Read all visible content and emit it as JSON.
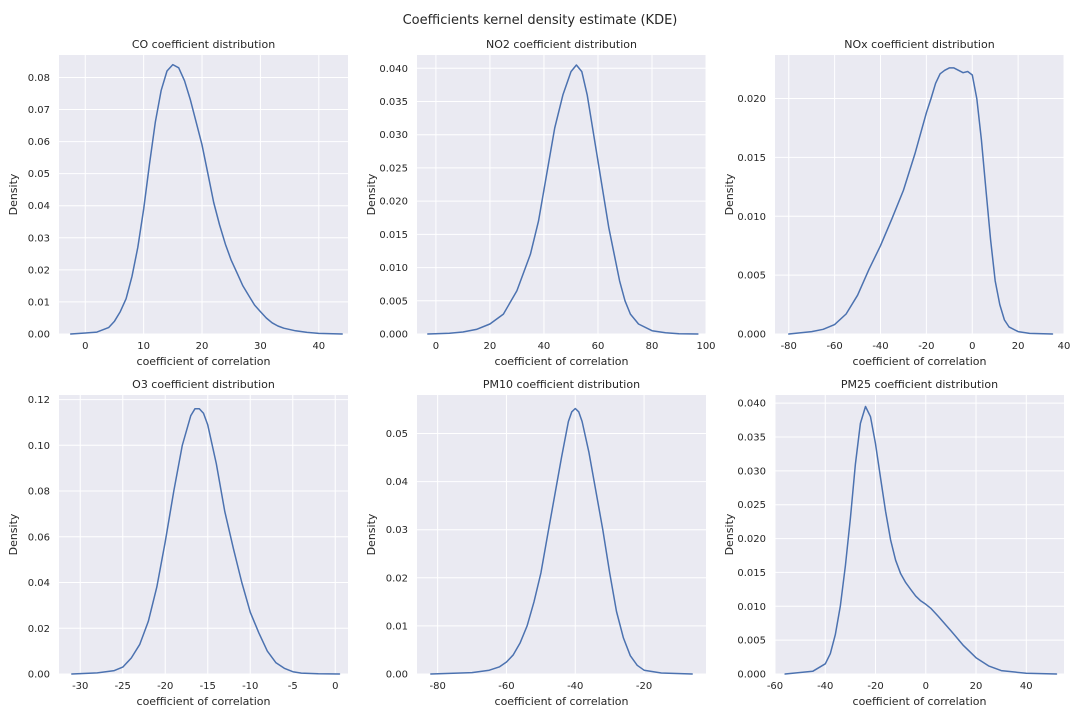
{
  "figure": {
    "title": "Coefficients kernel density estimate (KDE)"
  },
  "colors": {
    "line": "#4c72b0",
    "plot_background": "#eaeaf2",
    "grid": "#ffffff"
  },
  "chart_data": [
    {
      "type": "line",
      "title": "CO coefficient distribution",
      "xlabel": "coefficient of correlation",
      "ylabel": "Density",
      "xlim": [
        -4.5,
        45
      ],
      "ylim": [
        0,
        0.087
      ],
      "xticks": [
        0,
        10,
        20,
        30,
        40
      ],
      "yticks": [
        0.0,
        0.01,
        0.02,
        0.03,
        0.04,
        0.05,
        0.06,
        0.07,
        0.08
      ],
      "ytick_labels": [
        "0.00",
        "0.01",
        "0.02",
        "0.03",
        "0.04",
        "0.05",
        "0.06",
        "0.07",
        "0.08"
      ],
      "grid": true,
      "series": [
        {
          "x": [
            -2.5,
            0,
            2,
            4,
            5,
            6,
            7,
            8,
            9,
            10,
            11,
            12,
            13,
            14,
            15,
            16,
            17,
            18,
            19,
            20,
            21,
            22,
            23,
            24,
            25,
            26,
            27,
            28,
            29,
            30,
            31,
            32,
            33,
            34,
            36,
            38,
            40,
            44
          ],
          "y": [
            0.0,
            0.0003,
            0.0006,
            0.002,
            0.004,
            0.007,
            0.011,
            0.018,
            0.027,
            0.039,
            0.053,
            0.066,
            0.076,
            0.082,
            0.084,
            0.083,
            0.079,
            0.073,
            0.066,
            0.059,
            0.05,
            0.041,
            0.034,
            0.028,
            0.023,
            0.019,
            0.015,
            0.012,
            0.009,
            0.007,
            0.005,
            0.0035,
            0.0025,
            0.0018,
            0.001,
            0.0005,
            0.0002,
            0.0
          ]
        }
      ]
    },
    {
      "type": "line",
      "title": "NO2 coefficient distribution",
      "xlabel": "coefficient of correlation",
      "ylabel": "Density",
      "xlim": [
        -7,
        100
      ],
      "ylim": [
        0,
        0.042
      ],
      "xticks": [
        0,
        20,
        40,
        60,
        80,
        100
      ],
      "yticks": [
        0.0,
        0.005,
        0.01,
        0.015,
        0.02,
        0.025,
        0.03,
        0.035,
        0.04
      ],
      "ytick_labels": [
        "0.000",
        "0.005",
        "0.010",
        "0.015",
        "0.020",
        "0.025",
        "0.030",
        "0.035",
        "0.040"
      ],
      "grid": true,
      "series": [
        {
          "x": [
            -3,
            5,
            10,
            15,
            20,
            25,
            30,
            35,
            38,
            41,
            44,
            47,
            50,
            52,
            54,
            56,
            58,
            60,
            62,
            64,
            66,
            68,
            70,
            72,
            75,
            80,
            85,
            90,
            97
          ],
          "y": [
            0.0,
            0.0001,
            0.0003,
            0.0007,
            0.0015,
            0.003,
            0.0065,
            0.012,
            0.017,
            0.024,
            0.031,
            0.036,
            0.0395,
            0.0405,
            0.0395,
            0.036,
            0.031,
            0.026,
            0.021,
            0.016,
            0.012,
            0.008,
            0.005,
            0.003,
            0.0015,
            0.0005,
            0.0002,
            5e-05,
            0.0
          ]
        }
      ]
    },
    {
      "type": "line",
      "title": "NOx coefficient distribution",
      "xlabel": "coefficient of correlation",
      "ylabel": "Density",
      "xlim": [
        -86,
        40
      ],
      "ylim": [
        0,
        0.0237
      ],
      "xticks": [
        -80,
        -60,
        -40,
        -20,
        0,
        20,
        40
      ],
      "yticks": [
        0.0,
        0.005,
        0.01,
        0.015,
        0.02
      ],
      "ytick_labels": [
        "0.000",
        "0.005",
        "0.010",
        "0.015",
        "0.020"
      ],
      "grid": true,
      "series": [
        {
          "x": [
            -80,
            -70,
            -65,
            -60,
            -55,
            -50,
            -45,
            -40,
            -35,
            -30,
            -25,
            -20,
            -18,
            -16,
            -14,
            -12,
            -10,
            -8,
            -6,
            -4,
            -2,
            0,
            2,
            4,
            6,
            8,
            10,
            12,
            14,
            16,
            20,
            25,
            35
          ],
          "y": [
            0.0,
            0.0002,
            0.0004,
            0.0008,
            0.0017,
            0.0033,
            0.0055,
            0.0075,
            0.0098,
            0.0122,
            0.0153,
            0.0188,
            0.02,
            0.0213,
            0.0221,
            0.0224,
            0.0226,
            0.0226,
            0.0224,
            0.0222,
            0.0223,
            0.022,
            0.02,
            0.0165,
            0.0122,
            0.008,
            0.0045,
            0.0025,
            0.0012,
            0.0006,
            0.0002,
            5e-05,
            0.0
          ]
        }
      ]
    },
    {
      "type": "line",
      "title": "O3 coefficient distribution",
      "xlabel": "coefficient of correlation",
      "ylabel": "Density",
      "xlim": [
        -32.5,
        1.5
      ],
      "ylim": [
        0,
        0.122
      ],
      "xticks": [
        -30,
        -25,
        -20,
        -15,
        -10,
        -5,
        0
      ],
      "yticks": [
        0.0,
        0.02,
        0.04,
        0.06,
        0.08,
        0.1,
        0.12
      ],
      "ytick_labels": [
        "0.00",
        "0.02",
        "0.04",
        "0.06",
        "0.08",
        "0.10",
        "0.12"
      ],
      "grid": true,
      "series": [
        {
          "x": [
            -31,
            -28,
            -26,
            -25,
            -24,
            -23,
            -22,
            -21,
            -20,
            -19,
            -18,
            -17,
            -16.5,
            -16,
            -15.5,
            -15,
            -14,
            -13,
            -12,
            -11,
            -10,
            -9,
            -8,
            -7,
            -6,
            -5,
            -4,
            -2,
            0.5
          ],
          "y": [
            0.0,
            0.0005,
            0.0015,
            0.003,
            0.007,
            0.013,
            0.023,
            0.038,
            0.058,
            0.08,
            0.1,
            0.113,
            0.116,
            0.116,
            0.114,
            0.109,
            0.092,
            0.071,
            0.055,
            0.04,
            0.027,
            0.018,
            0.01,
            0.005,
            0.0025,
            0.001,
            0.0004,
            0.0001,
            0.0
          ]
        }
      ]
    },
    {
      "type": "line",
      "title": "PM10 coefficient distribution",
      "xlabel": "coefficient of correlation",
      "ylabel": "Density",
      "xlim": [
        -86,
        -2
      ],
      "ylim": [
        0,
        0.058
      ],
      "xticks": [
        -80,
        -60,
        -40,
        -20
      ],
      "yticks": [
        0.0,
        0.01,
        0.02,
        0.03,
        0.04,
        0.05
      ],
      "ytick_labels": [
        "0.00",
        "0.01",
        "0.02",
        "0.03",
        "0.04",
        "0.05"
      ],
      "grid": true,
      "series": [
        {
          "x": [
            -82,
            -70,
            -65,
            -62,
            -60,
            -58,
            -56,
            -54,
            -52,
            -50,
            -48,
            -46,
            -44,
            -42,
            -41,
            -40,
            -39,
            -38,
            -36,
            -34,
            -32,
            -30,
            -28,
            -26,
            -24,
            -22,
            -20,
            -15,
            -6
          ],
          "y": [
            0.0,
            0.0003,
            0.0008,
            0.0015,
            0.0025,
            0.004,
            0.0065,
            0.01,
            0.015,
            0.021,
            0.029,
            0.037,
            0.045,
            0.0525,
            0.0545,
            0.0552,
            0.0545,
            0.0525,
            0.046,
            0.038,
            0.03,
            0.021,
            0.013,
            0.0075,
            0.0038,
            0.0018,
            0.0008,
            0.0002,
            0.0
          ]
        }
      ]
    },
    {
      "type": "line",
      "title": "PM25 coefficient distribution",
      "xlabel": "coefficient of correlation",
      "ylabel": "Density",
      "xlim": [
        -60,
        55
      ],
      "ylim": [
        0,
        0.0412
      ],
      "xticks": [
        -60,
        -40,
        -20,
        0,
        20,
        40
      ],
      "yticks": [
        0.0,
        0.005,
        0.01,
        0.015,
        0.02,
        0.025,
        0.03,
        0.035,
        0.04
      ],
      "ytick_labels": [
        "0.000",
        "0.005",
        "0.010",
        "0.015",
        "0.020",
        "0.025",
        "0.030",
        "0.035",
        "0.040"
      ],
      "grid": true,
      "series": [
        {
          "x": [
            -56,
            -45,
            -40,
            -38,
            -36,
            -34,
            -32,
            -30,
            -28,
            -26,
            -24,
            -22,
            -20,
            -18,
            -16,
            -14,
            -12,
            -10,
            -8,
            -6,
            -4,
            -2,
            0,
            2,
            5,
            10,
            15,
            20,
            25,
            30,
            40,
            52
          ],
          "y": [
            0.0,
            0.0004,
            0.0015,
            0.003,
            0.0058,
            0.01,
            0.016,
            0.023,
            0.031,
            0.037,
            0.0395,
            0.038,
            0.034,
            0.029,
            0.024,
            0.0198,
            0.0168,
            0.0148,
            0.0135,
            0.0125,
            0.0115,
            0.0108,
            0.0103,
            0.0097,
            0.0085,
            0.0064,
            0.0042,
            0.0024,
            0.0012,
            0.0005,
            0.0001,
            0.0
          ]
        }
      ]
    }
  ]
}
